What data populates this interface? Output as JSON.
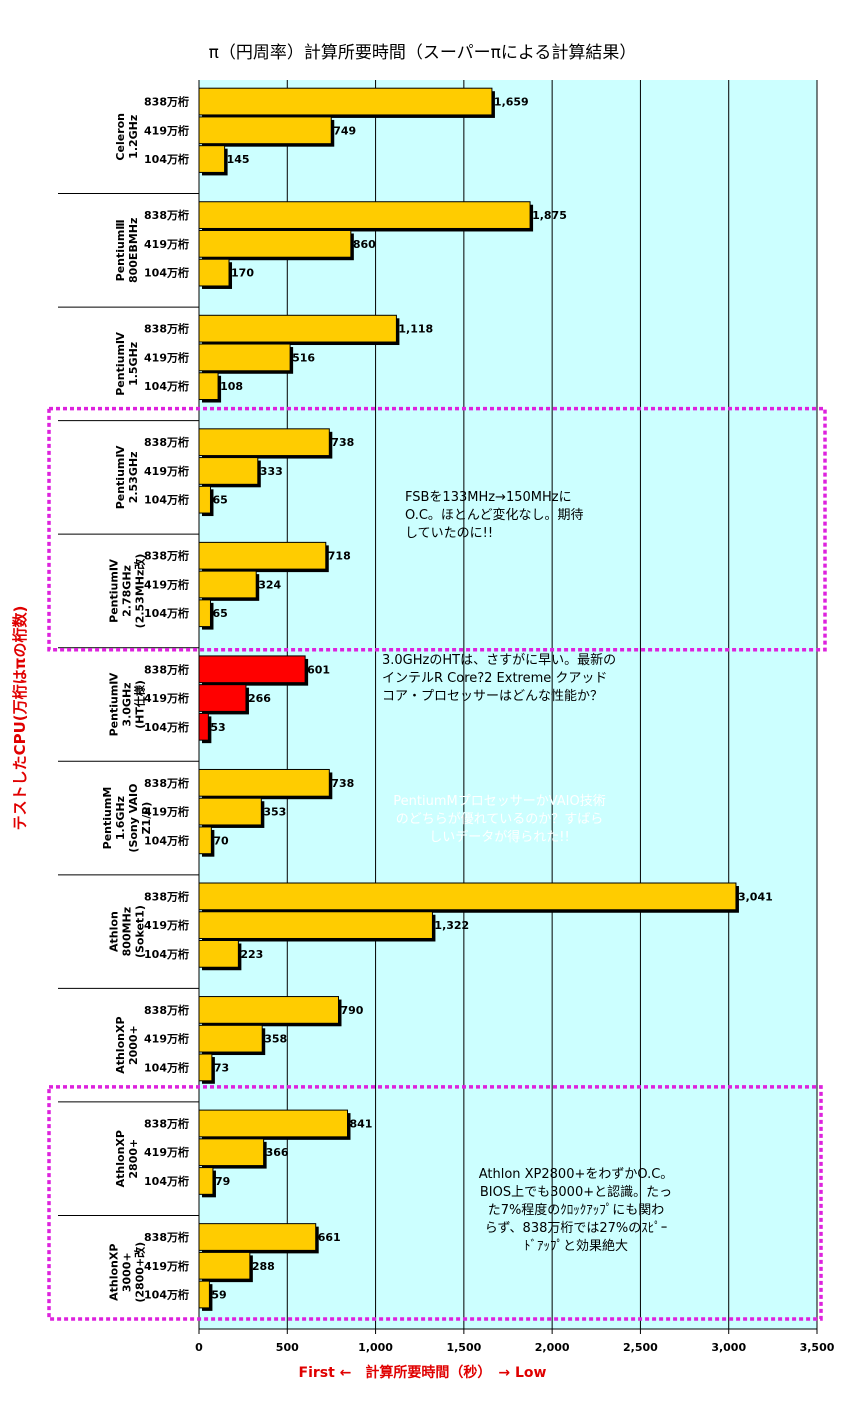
{
  "chart_data": {
    "type": "bar",
    "orientation": "horizontal",
    "title": "π（円周率）計算所要時間（スーパーπによる計算結果）",
    "xlabel": "First ←　計算所要時間（秒）　→ Low",
    "ylabel": "テストしたCPU(万桁はπの桁数)",
    "xlim": [
      0,
      3500
    ],
    "xticks": [
      0,
      500,
      1000,
      1500,
      2000,
      2500,
      3000,
      3500
    ],
    "xtick_labels": [
      "0",
      "500",
      "1,000",
      "1,500",
      "2,000",
      "2,500",
      "3,000",
      "3,500"
    ],
    "grid": true,
    "row_labels": [
      "838万桁",
      "419万桁",
      "104万桁"
    ],
    "groups": [
      {
        "cpu": [
          "Celeron",
          "1.2GHz"
        ],
        "values": [
          1659,
          749,
          145
        ],
        "labels": [
          "1,659",
          "749",
          "145"
        ],
        "highlight": false
      },
      {
        "cpu": [
          "PentiumⅢ",
          "800EBMHz"
        ],
        "values": [
          1875,
          860,
          170
        ],
        "labels": [
          "1,875",
          "860",
          "170"
        ],
        "highlight": false
      },
      {
        "cpu": [
          "PentiumⅣ",
          "1.5GHz"
        ],
        "values": [
          1118,
          516,
          108
        ],
        "labels": [
          "1,118",
          "516",
          "108"
        ],
        "highlight": false
      },
      {
        "cpu": [
          "PentiumⅣ",
          "2.53GHz"
        ],
        "values": [
          738,
          333,
          65
        ],
        "labels": [
          "738",
          "333",
          "65"
        ],
        "highlight": false
      },
      {
        "cpu": [
          "PentiumⅣ",
          "2.78GHz",
          "(2.53MHz改)"
        ],
        "values": [
          718,
          324,
          65
        ],
        "labels": [
          "718",
          "324",
          "65"
        ],
        "highlight": false
      },
      {
        "cpu": [
          "PentiumⅣ",
          "3.0GHz",
          "(HT仕様)"
        ],
        "values": [
          601,
          266,
          53
        ],
        "labels": [
          "601",
          "266",
          "53"
        ],
        "highlight": true
      },
      {
        "cpu": [
          "PentiumM",
          "1.6GHz",
          "(Sony VAIO",
          "Z1/P)"
        ],
        "values": [
          738,
          353,
          70
        ],
        "labels": [
          "738",
          "353",
          "70"
        ],
        "highlight": false
      },
      {
        "cpu": [
          "Athlon",
          "800MHz",
          "(Soket1)"
        ],
        "values": [
          3041,
          1322,
          223
        ],
        "labels": [
          "3,041",
          "1,322",
          "223"
        ],
        "highlight": false
      },
      {
        "cpu": [
          "AthlonXP",
          "2000+"
        ],
        "values": [
          790,
          358,
          73
        ],
        "labels": [
          "790",
          "358",
          "73"
        ],
        "highlight": false
      },
      {
        "cpu": [
          "AthlonXP",
          "2800+"
        ],
        "values": [
          841,
          366,
          79
        ],
        "labels": [
          "841",
          "366",
          "79"
        ],
        "highlight": false
      },
      {
        "cpu": [
          "AthlonXP",
          "3000+",
          "(2800+改)"
        ],
        "values": [
          661,
          288,
          59
        ],
        "labels": [
          "661",
          "288",
          "59"
        ],
        "highlight": false
      }
    ],
    "annotations": [
      {
        "lines": [
          "FSBを133MHz→150MHzに",
          "O.C。ほとんど変化なし。期待",
          "していたのに!!"
        ]
      },
      {
        "lines": [
          "3.0GHzのHTは、さすがに早い。最新の",
          "インテルR Core?2 Extreme クアッド",
          "コア・プロセッサーはどんな性能か？"
        ]
      },
      {
        "lines": [
          "PentiumMプロセッサーかVAIO技術",
          "のどちらが優れているのか？すばら",
          "しいデータが得られた!!"
        ]
      },
      {
        "lines": [
          "Athlon XP2800+をわずかO.C。",
          "BIOS上でも3000+と認識。たっ",
          "た7%程度のｸﾛｯｸｱｯﾌﾟにも関わ",
          "らず、838万桁では27%のｽﾋﾟｰ",
          "ﾄﾞｱｯﾌﾟと効果絶大"
        ]
      }
    ],
    "colors": {
      "plot_bg": "#ccffff",
      "bar": "#ffcc00",
      "bar_highlight": "#ff0000",
      "highlight_box": "#dd22dd",
      "axis_title": "#e00000",
      "callout_fsb": "#33cccc",
      "callout_vaio": "#ff0000",
      "callout_athlon": "#ccccff"
    }
  }
}
